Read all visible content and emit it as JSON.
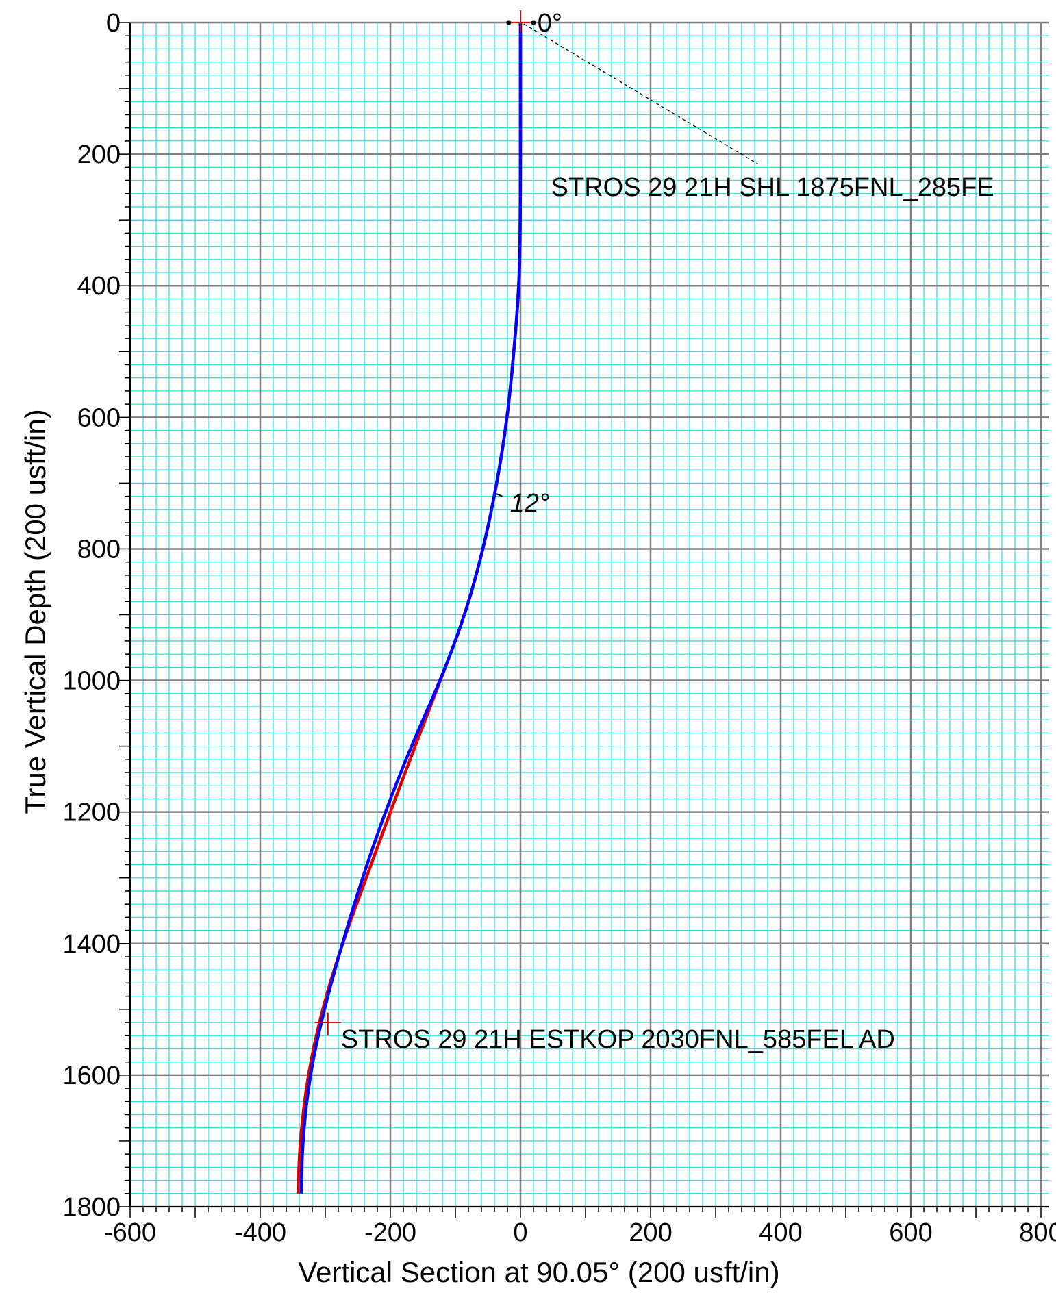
{
  "chart_data": {
    "type": "line",
    "xlabel": "Vertical Section at 90.05° (200 usft/in)",
    "ylabel": "True Vertical Depth (200 usft/in)",
    "xlim": [
      -600,
      800
    ],
    "ylim": [
      0,
      1800
    ],
    "y_inverted": true,
    "x_ticks": [
      "-600",
      "-400",
      "-200",
      "0",
      "200",
      "400",
      "600",
      "800"
    ],
    "y_ticks": [
      "0",
      "200",
      "400",
      "600",
      "800",
      "1000",
      "1200",
      "1400",
      "1600",
      "1800"
    ],
    "grid": true,
    "colors": {
      "minor_grid": "#33e0e0",
      "major_grid": "#808080",
      "plan": "#0000ff",
      "actual": "#e00000"
    },
    "series": [
      {
        "color": "#e00000",
        "points": [
          [
            0,
            0
          ],
          [
            0,
            300
          ],
          [
            -2,
            400
          ],
          [
            -10,
            500
          ],
          [
            -20,
            600
          ],
          [
            -36,
            700
          ],
          [
            -57,
            800
          ],
          [
            -85,
            900
          ],
          [
            -123,
            1000
          ],
          [
            -162,
            1100
          ],
          [
            -200,
            1200
          ],
          [
            -237,
            1300
          ],
          [
            -274,
            1400
          ],
          [
            -305,
            1500
          ],
          [
            -327,
            1600
          ],
          [
            -339,
            1700
          ],
          [
            -342,
            1780
          ]
        ]
      },
      {
        "color": "#0000ff",
        "points": [
          [
            0,
            0
          ],
          [
            0,
            300
          ],
          [
            -2,
            400
          ],
          [
            -10,
            500
          ],
          [
            -20,
            600
          ],
          [
            -36,
            700
          ],
          [
            -57,
            800
          ],
          [
            -85,
            900
          ],
          [
            -123,
            1000
          ],
          [
            -168,
            1100
          ],
          [
            -208,
            1200
          ],
          [
            -243,
            1300
          ],
          [
            -274,
            1400
          ],
          [
            -302,
            1500
          ],
          [
            -324,
            1600
          ],
          [
            -335,
            1700
          ],
          [
            -337,
            1780
          ]
        ]
      }
    ],
    "annotations": [
      {
        "text": "0°",
        "x": 26,
        "y": 0
      },
      {
        "text": "12°",
        "x": -16,
        "y": 730
      },
      {
        "text": "STROS 29 21H SHL 1875FNL_285FE",
        "x": 47,
        "y": 250
      },
      {
        "text": "STROS 29 21H ESTKOP 2030FNL_585FEL AD",
        "x": -276,
        "y": 1545
      }
    ]
  }
}
